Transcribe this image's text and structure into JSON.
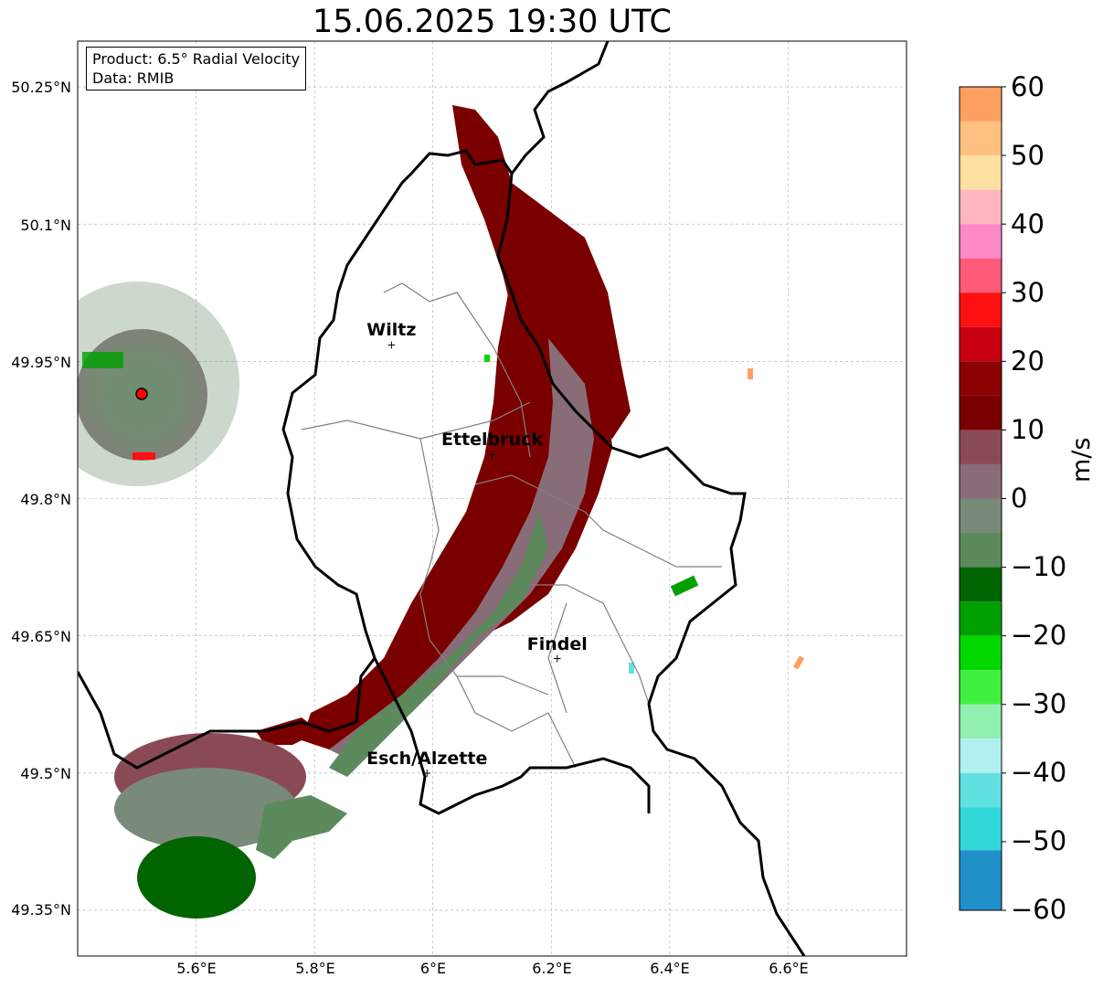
{
  "title": "15.06.2025 19:30 UTC",
  "info": {
    "product": "Product: 6.5° Radial Velocity",
    "source": "Data: RMIB"
  },
  "cities": [
    {
      "name": "Wiltz",
      "lon": 5.93,
      "lat": 49.968
    },
    {
      "name": "Ettelbruck",
      "lon": 6.1,
      "lat": 49.848
    },
    {
      "name": "Findel",
      "lon": 6.21,
      "lat": 49.625
    },
    {
      "name": "Esch/Alzette",
      "lon": 5.99,
      "lat": 49.5
    }
  ],
  "radar_site": {
    "lon": 5.505,
    "lat": 49.915
  },
  "map": {
    "lon_range": [
      5.4,
      6.8
    ],
    "lat_range": [
      49.3,
      50.3
    ],
    "lat_ticks": [
      "49.35°N",
      "49.5°N",
      "49.65°N",
      "49.8°N",
      "49.95°N",
      "50.1°N",
      "50.25°N"
    ],
    "lon_ticks": [
      "5.6°E",
      "5.8°E",
      "6°E",
      "6.2°E",
      "6.4°E",
      "6.6°E"
    ]
  },
  "colorbar": {
    "label": "m/s",
    "min": -60,
    "max": 60,
    "ticks": [
      "60",
      "50",
      "40",
      "30",
      "20",
      "10",
      "0",
      "−10",
      "−20",
      "−30",
      "−40",
      "−50",
      "−60"
    ],
    "colors": [
      "#ffa060",
      "#ffc080",
      "#ffe0a0",
      "#ffb6c1",
      "#ff88c8",
      "#ff5a78",
      "#ff1010",
      "#c80010",
      "#8b0000",
      "#7a0000",
      "#8a4a55",
      "#886d78",
      "#7a8a7a",
      "#5c8a5c",
      "#006400",
      "#00a000",
      "#00d800",
      "#40f040",
      "#90f0b0",
      "#b0f0f0",
      "#60e0e0",
      "#30d8d8",
      "#2090c8"
    ],
    "color_values": [
      57.5,
      52.5,
      47.5,
      42.5,
      37.5,
      32.5,
      27.5,
      22.5,
      17.5,
      12.5,
      7.5,
      2.5,
      -2.5,
      -7.5,
      -12.5,
      -17.5,
      -22.5,
      -27.5,
      -32.5,
      -37.5,
      -42.5,
      -47.5,
      -55
    ]
  }
}
